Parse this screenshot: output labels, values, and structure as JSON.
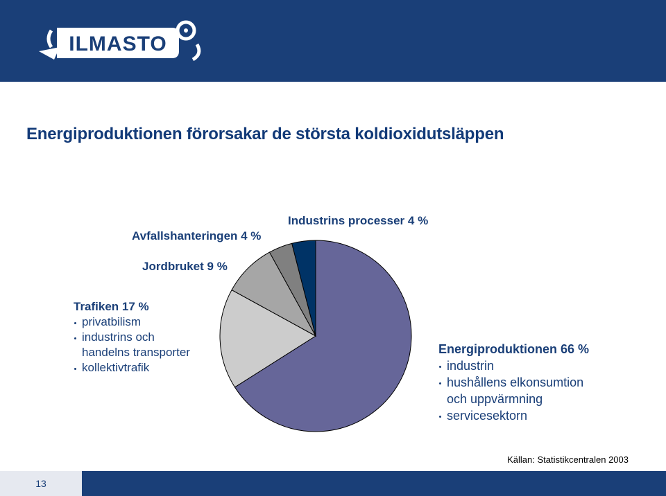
{
  "header": {
    "logo_text": "ILMASTO"
  },
  "slide": {
    "title": "Energiproduktionen förorsakar de största koldioxidutsläppen",
    "source": "Källan: Statistikcentralen 2003",
    "page_number": "13"
  },
  "chart_data": {
    "type": "pie",
    "title": "",
    "series": [
      {
        "name": "Energiproduktionen",
        "value": 66,
        "label": "Energiproduktionen 66 %",
        "sub_items": [
          "industrin",
          "hushållens elkonsumtion",
          "och uppvärmning",
          "servicesektorn"
        ],
        "color": "#666699"
      },
      {
        "name": "Trafiken",
        "value": 17,
        "label": "Trafiken 17 %",
        "sub_items": [
          "privatbilism",
          "industrins och",
          "handelns transporter",
          "kollektivtrafik"
        ],
        "color": "#cccccc"
      },
      {
        "name": "Jordbruket",
        "value": 9,
        "label": "Jordbruket 9 %",
        "color": "#a6a6a6"
      },
      {
        "name": "Avfallshanteringen",
        "value": 4,
        "label": "Avfallshanteringen 4 %",
        "color": "#808080"
      },
      {
        "name": "Industrins processer",
        "value": 4,
        "label": "Industrins processer 4 %",
        "color": "#003366"
      }
    ]
  }
}
